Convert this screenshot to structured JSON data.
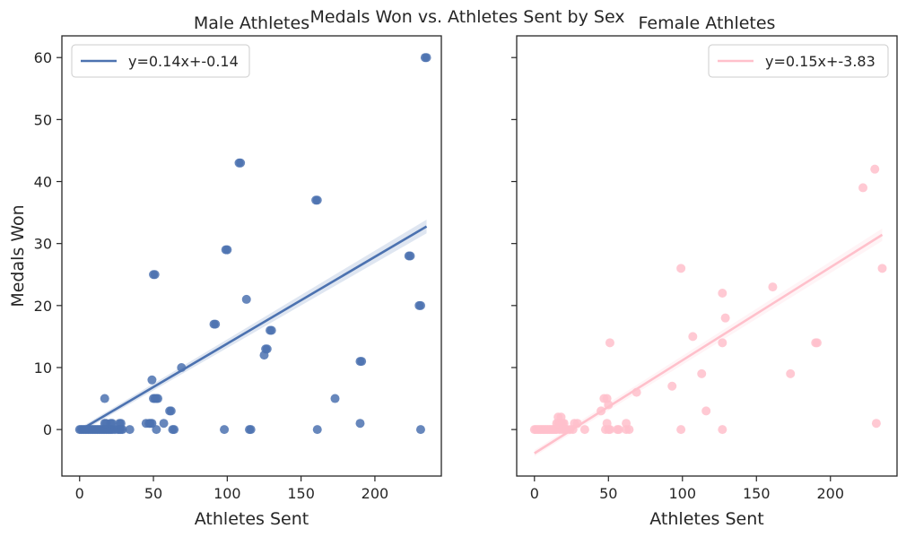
{
  "figure": {
    "suptitle": "Medals Won vs. Athletes Sent by Sex"
  },
  "chart_data": [
    {
      "type": "scatter",
      "title": "Male Athletes",
      "xlabel": "Athletes Sent",
      "ylabel": "Medals Won",
      "xlim": [
        -12,
        245
      ],
      "ylim": [
        -7.5,
        63.5
      ],
      "xticks": [
        "0",
        "50",
        "100",
        "150",
        "200"
      ],
      "yticks": [
        "0",
        "10",
        "20",
        "30",
        "40",
        "50",
        "60"
      ],
      "color": "#4c72b0",
      "band_color": "#4c72b0",
      "legend": {
        "label": "y=0.14x+-0.14",
        "position": "top-left"
      },
      "regression": {
        "slope": 0.14,
        "intercept": -0.14,
        "x_range": [
          0,
          235
        ],
        "band": [
          [
            0,
            0.4
          ],
          [
            235,
            1.1
          ]
        ]
      },
      "points": [
        [
          0,
          0
        ],
        [
          1,
          0
        ],
        [
          2,
          0
        ],
        [
          3,
          0
        ],
        [
          4,
          0
        ],
        [
          5,
          0
        ],
        [
          6,
          0
        ],
        [
          7,
          0
        ],
        [
          8,
          0
        ],
        [
          9,
          0
        ],
        [
          10,
          0
        ],
        [
          11,
          0
        ],
        [
          12,
          0
        ],
        [
          13,
          0
        ],
        [
          14,
          0
        ],
        [
          15,
          0
        ],
        [
          16,
          0
        ],
        [
          17,
          0
        ],
        [
          18,
          0
        ],
        [
          19,
          0
        ],
        [
          20,
          0
        ],
        [
          21,
          0
        ],
        [
          22,
          0
        ],
        [
          24,
          0
        ],
        [
          26,
          0
        ],
        [
          27,
          0
        ],
        [
          28,
          0
        ],
        [
          29,
          0
        ],
        [
          34,
          0
        ],
        [
          52,
          0
        ],
        [
          63,
          0
        ],
        [
          64,
          0
        ],
        [
          98,
          0
        ],
        [
          115,
          0
        ],
        [
          116,
          0
        ],
        [
          161,
          0
        ],
        [
          231,
          0
        ],
        [
          17,
          1
        ],
        [
          18,
          1
        ],
        [
          21,
          1
        ],
        [
          22,
          1
        ],
        [
          27,
          1
        ],
        [
          28,
          1
        ],
        [
          45,
          1
        ],
        [
          47,
          1
        ],
        [
          48,
          1
        ],
        [
          49,
          1
        ],
        [
          190,
          1
        ],
        [
          17,
          5
        ],
        [
          50,
          5
        ],
        [
          51,
          5
        ],
        [
          52,
          5
        ],
        [
          53,
          5
        ],
        [
          173,
          5
        ],
        [
          49,
          8
        ],
        [
          69,
          10
        ],
        [
          57,
          1
        ],
        [
          61,
          3
        ],
        [
          62,
          3
        ],
        [
          91,
          17
        ],
        [
          92,
          17
        ],
        [
          113,
          21
        ],
        [
          125,
          12
        ],
        [
          126,
          13
        ],
        [
          127,
          13
        ],
        [
          129,
          16
        ],
        [
          130,
          16
        ],
        [
          50,
          25
        ],
        [
          51,
          25
        ],
        [
          99,
          29
        ],
        [
          100,
          29
        ],
        [
          108,
          43
        ],
        [
          109,
          43
        ],
        [
          160,
          37
        ],
        [
          161,
          37
        ],
        [
          190,
          11
        ],
        [
          191,
          11
        ],
        [
          223,
          28
        ],
        [
          224,
          28
        ],
        [
          230,
          20
        ],
        [
          231,
          20
        ],
        [
          234,
          60
        ],
        [
          235,
          60
        ]
      ]
    },
    {
      "type": "scatter",
      "title": "Female Athletes",
      "xlabel": "Athletes Sent",
      "ylabel": "",
      "xlim": [
        -12,
        245
      ],
      "ylim": [
        -7.5,
        63.5
      ],
      "xticks": [
        "0",
        "50",
        "100",
        "150",
        "200"
      ],
      "yticks": [],
      "color": "#ffc0cb",
      "band_color": "#ffc0cb",
      "legend": {
        "label": "y=0.15x+-3.83",
        "position": "top-right"
      },
      "regression": {
        "slope": 0.15,
        "intercept": -3.83,
        "x_range": [
          0,
          235
        ],
        "band": [
          [
            0,
            0.5
          ],
          [
            235,
            1.0
          ]
        ]
      },
      "points": [
        [
          0,
          0
        ],
        [
          1,
          0
        ],
        [
          2,
          0
        ],
        [
          3,
          0
        ],
        [
          4,
          0
        ],
        [
          5,
          0
        ],
        [
          6,
          0
        ],
        [
          7,
          0
        ],
        [
          8,
          0
        ],
        [
          9,
          0
        ],
        [
          10,
          0
        ],
        [
          11,
          0
        ],
        [
          12,
          0
        ],
        [
          13,
          0
        ],
        [
          14,
          0
        ],
        [
          15,
          0
        ],
        [
          17,
          0
        ],
        [
          19,
          0
        ],
        [
          21,
          0
        ],
        [
          22,
          0
        ],
        [
          24,
          0
        ],
        [
          26,
          0
        ],
        [
          34,
          0
        ],
        [
          48,
          0
        ],
        [
          50,
          0
        ],
        [
          51,
          0
        ],
        [
          56,
          0
        ],
        [
          57,
          0
        ],
        [
          62,
          0
        ],
        [
          64,
          0
        ],
        [
          99,
          0
        ],
        [
          127,
          0
        ],
        [
          15,
          1
        ],
        [
          16,
          1
        ],
        [
          18,
          1
        ],
        [
          20,
          1
        ],
        [
          27,
          1
        ],
        [
          29,
          1
        ],
        [
          49,
          1
        ],
        [
          62,
          1
        ],
        [
          231,
          1
        ],
        [
          16,
          2
        ],
        [
          18,
          2
        ],
        [
          17,
          1
        ],
        [
          19,
          1
        ],
        [
          45,
          3
        ],
        [
          116,
          3
        ],
        [
          47,
          5
        ],
        [
          49,
          5
        ],
        [
          50,
          4
        ],
        [
          51,
          14
        ],
        [
          69,
          6
        ],
        [
          93,
          7
        ],
        [
          99,
          26
        ],
        [
          107,
          15
        ],
        [
          113,
          9
        ],
        [
          127,
          22
        ],
        [
          127,
          14
        ],
        [
          129,
          18
        ],
        [
          161,
          23
        ],
        [
          173,
          9
        ],
        [
          190,
          14
        ],
        [
          191,
          14
        ],
        [
          222,
          39
        ],
        [
          230,
          42
        ],
        [
          235,
          26
        ]
      ]
    }
  ]
}
